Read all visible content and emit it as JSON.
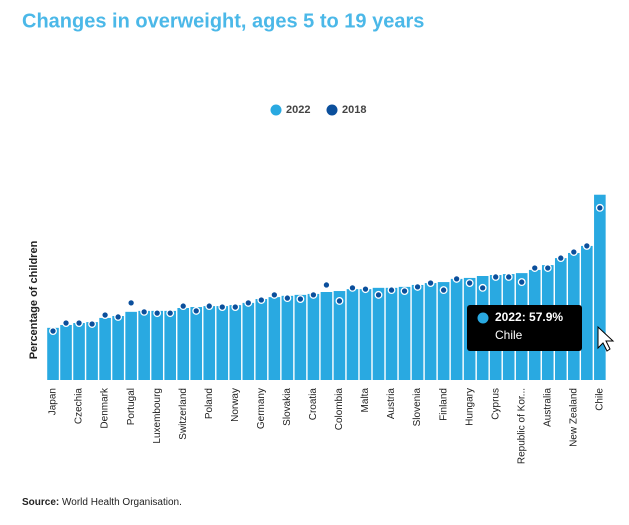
{
  "chart_data": {
    "type": "bar",
    "title": "Changes in overweight, ages 5 to 19 years",
    "y_label": "Percentage of children",
    "categories": [
      "Japan",
      null,
      "Czechia",
      null,
      "Denmark",
      null,
      "Portugal",
      null,
      "Luxembourg",
      null,
      "Switzerland",
      null,
      "Poland",
      null,
      "Norway",
      null,
      "Germany",
      null,
      "Slovakia",
      null,
      "Croatia",
      null,
      "Colombia",
      null,
      "Malta",
      null,
      "Austria",
      null,
      "Slovenia",
      null,
      "Finland",
      null,
      "Hungary",
      null,
      "Cyprus",
      null,
      "Republic of Kor...",
      null,
      "Australia",
      null,
      "New Zealand",
      null,
      "Chile"
    ],
    "series": [
      {
        "name": "2022",
        "color": "#29a9e1",
        "values": [
          16.3,
          17.2,
          17.8,
          18.1,
          19.4,
          20.0,
          21.3,
          21.6,
          21.6,
          21.6,
          22.5,
          22.8,
          23.1,
          23.1,
          23.4,
          24.1,
          25.3,
          25.9,
          26.3,
          26.6,
          26.9,
          27.5,
          27.8,
          28.4,
          28.4,
          28.8,
          28.8,
          29.1,
          29.7,
          30.3,
          30.6,
          31.6,
          31.9,
          32.5,
          32.8,
          33.1,
          33.4,
          34.4,
          35.9,
          38.1,
          39.7,
          41.9,
          57.9
        ]
      },
      {
        "name": "2018",
        "color": "#0b4f9c",
        "values": [
          15.3,
          17.8,
          17.8,
          17.5,
          20.3,
          19.7,
          24.1,
          21.3,
          20.9,
          20.9,
          23.1,
          21.6,
          23.1,
          22.8,
          22.8,
          24.1,
          25.0,
          26.6,
          25.6,
          25.3,
          26.6,
          29.7,
          24.7,
          28.8,
          28.4,
          26.6,
          28.1,
          27.8,
          29.1,
          30.3,
          28.1,
          31.6,
          30.3,
          28.8,
          32.2,
          32.2,
          30.6,
          35.0,
          35.0,
          38.1,
          40.0,
          41.9,
          53.8
        ]
      }
    ],
    "ylim": [
      0,
      60
    ],
    "tooltip": {
      "label": "2022: 57.9%",
      "category": "Chile"
    },
    "source": {
      "label": "Source:",
      "text": "World Health Organisation."
    }
  }
}
